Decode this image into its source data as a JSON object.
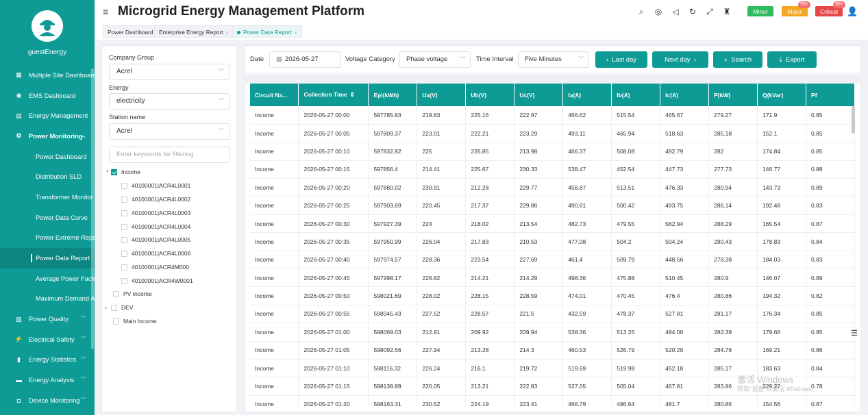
{
  "app": {
    "title": "Microgrid Energy Management Platform",
    "username": "guestEnergy"
  },
  "colors": {
    "brand": "#0e9a95",
    "minor": "#2dbb5d",
    "major": "#f5a623",
    "critical": "#e64848"
  },
  "sidebar": {
    "items": [
      {
        "label": "Multiple Site Dashboard",
        "icon": "chart-icon"
      },
      {
        "label": "EMS Dashboard",
        "icon": "dashboard-icon"
      },
      {
        "label": "Energy Management",
        "icon": "energy-icon"
      },
      {
        "label": "Power Monitoring",
        "icon": "monitor-icon"
      },
      {
        "label": "Power Dashboard"
      },
      {
        "label": "Distribution SLD"
      },
      {
        "label": "Transformer Monitor"
      },
      {
        "label": "Power Data Curve"
      },
      {
        "label": "Power Extreme Report"
      },
      {
        "label": "Power Data Report"
      },
      {
        "label": "Average Power Factor"
      },
      {
        "label": "Maximum Demand Analysis"
      },
      {
        "label": "Power Quality",
        "icon": "quality-icon"
      },
      {
        "label": "Electrical Safety",
        "icon": "safety-icon"
      },
      {
        "label": "Energy Statistics",
        "icon": "statistics-icon"
      },
      {
        "label": "Energy Analysis",
        "icon": "analysis-icon"
      },
      {
        "label": "Device Monitoring",
        "icon": "device-icon"
      }
    ]
  },
  "alarms": {
    "minor": {
      "label": "Minor"
    },
    "major": {
      "label": "Major",
      "count": "99+"
    },
    "critical": {
      "label": "Critical",
      "count": "99+"
    }
  },
  "tabs": [
    {
      "label": "Power Dashboard"
    },
    {
      "label": "Enterprise Energy Report",
      "close": "×"
    },
    {
      "label": "Power Data Report",
      "close": "×"
    }
  ],
  "left": {
    "company_group_label": "Company Group",
    "company_group_value": "Acrel",
    "energy_label": "Energy",
    "energy_value": "electricity",
    "station_label": "Station name",
    "station_value": "Acrel",
    "filter_placeholder": "Enter keywords for filtering",
    "tree": [
      {
        "label": "Income",
        "checked": true
      },
      {
        "label": "40100001|ACR4L0001"
      },
      {
        "label": "40100001|ACR4L0002"
      },
      {
        "label": "40100001|ACR4L0003"
      },
      {
        "label": "40100001|ACR4L0004"
      },
      {
        "label": "40100001|ACR4L0005"
      },
      {
        "label": "40100001|ACR4L0006"
      },
      {
        "label": "40100001|ACR4M000"
      },
      {
        "label": "40100001|ACR4W0001"
      },
      {
        "label": "PV Income"
      },
      {
        "label": "DEV"
      },
      {
        "label": "Main Income"
      }
    ]
  },
  "filters": {
    "date_label": "Date",
    "date_value": "2026-05-27",
    "voltage_label": "Voltage Category",
    "voltage_value": "Phase voltage",
    "interval_label": "Time Interval",
    "interval_value": "Five Minutes",
    "last_day": "Last day",
    "next_day": "Next day",
    "search": "Search",
    "export": "Export"
  },
  "table": {
    "columns": [
      "Circuit Na...",
      "Collection Time",
      "Epi(kWh)",
      "Ua(V)",
      "Ub(V)",
      "Uc(V)",
      "Ia(A)",
      "Ib(A)",
      "Ic(A)",
      "P(kW)",
      "Q(kVar)",
      "Pf"
    ],
    "rows": [
      [
        "Income",
        "2026-05-27 00:00",
        "597785.83",
        "219.83",
        "225.16",
        "222.97",
        "466.62",
        "515.54",
        "465.67",
        "279.27",
        "171.9",
        "0.85"
      ],
      [
        "Income",
        "2026-05-27 00:05",
        "597809.37",
        "223.01",
        "222.21",
        "223.29",
        "493.11",
        "465.94",
        "518.63",
        "285.18",
        "152.1",
        "0.85"
      ],
      [
        "Income",
        "2026-05-27 00:10",
        "597832.82",
        "225",
        "226.85",
        "213.98",
        "466.37",
        "508.08",
        "492.79",
        "282",
        "174.84",
        "0.85"
      ],
      [
        "Income",
        "2026-05-27 00:15",
        "597856.4",
        "214.41",
        "225.67",
        "230.33",
        "538.47",
        "452.54",
        "447.73",
        "277.73",
        "146.77",
        "0.88"
      ],
      [
        "Income",
        "2026-05-27 00:20",
        "597880.02",
        "230.91",
        "212.28",
        "229.77",
        "458.87",
        "513.51",
        "476.33",
        "280.94",
        "143.73",
        "0.89"
      ],
      [
        "Income",
        "2026-05-27 00:25",
        "597903.69",
        "220.45",
        "217.37",
        "229.86",
        "490.61",
        "500.42",
        "493.75",
        "286.14",
        "192.48",
        "0.83"
      ],
      [
        "Income",
        "2026-05-27 00:30",
        "597927.39",
        "224",
        "218.02",
        "213.54",
        "482.73",
        "479.55",
        "562.94",
        "288.29",
        "165.54",
        "0.87"
      ],
      [
        "Income",
        "2026-05-27 00:35",
        "597950.99",
        "226.04",
        "217.83",
        "210.53",
        "477.08",
        "504.2",
        "504.24",
        "280.43",
        "178.83",
        "0.84"
      ],
      [
        "Income",
        "2026-05-27 00:40",
        "597974.57",
        "228.36",
        "223.54",
        "227.69",
        "461.4",
        "509.79",
        "448.56",
        "278.38",
        "184.03",
        "0.83"
      ],
      [
        "Income",
        "2026-05-27 00:45",
        "597998.17",
        "226.82",
        "214.21",
        "214.29",
        "498.36",
        "475.88",
        "510.45",
        "280.9",
        "146.07",
        "0.89"
      ],
      [
        "Income",
        "2026-05-27 00:50",
        "598021.69",
        "228.02",
        "228.15",
        "228.59",
        "474.01",
        "470.45",
        "476.4",
        "280.86",
        "194.32",
        "0.82"
      ],
      [
        "Income",
        "2026-05-27 00:55",
        "598045.43",
        "227.52",
        "228.57",
        "221.5",
        "432.59",
        "478.37",
        "527.81",
        "281.17",
        "176.34",
        "0.85"
      ],
      [
        "Income",
        "2026-05-27 01:00",
        "598069.03",
        "212.91",
        "209.92",
        "209.94",
        "538.36",
        "513.26",
        "494.06",
        "282.39",
        "179.66",
        "0.85"
      ],
      [
        "Income",
        "2026-05-27 01:05",
        "598092.56",
        "227.94",
        "213.28",
        "214.3",
        "460.53",
        "526.79",
        "520.29",
        "284.76",
        "169.21",
        "0.86"
      ],
      [
        "Income",
        "2026-05-27 01:10",
        "598116.32",
        "226.24",
        "216.1",
        "219.72",
        "519.69",
        "519.98",
        "452.18",
        "285.17",
        "183.63",
        "0.84"
      ],
      [
        "Income",
        "2026-05-27 01:15",
        "598139.89",
        "220.05",
        "213.21",
        "222.83",
        "527.05",
        "505.04",
        "467.81",
        "283.96",
        "229.27",
        "0.78"
      ],
      [
        "Income",
        "2026-05-27 01:20",
        "598163.31",
        "230.52",
        "224.19",
        "223.41",
        "466.79",
        "486.64",
        "481.7",
        "280.86",
        "154.56",
        "0.87"
      ]
    ]
  },
  "watermark": {
    "line1": "激活 Windows",
    "line2": "转到\"设置\"以激活 Windows。"
  }
}
